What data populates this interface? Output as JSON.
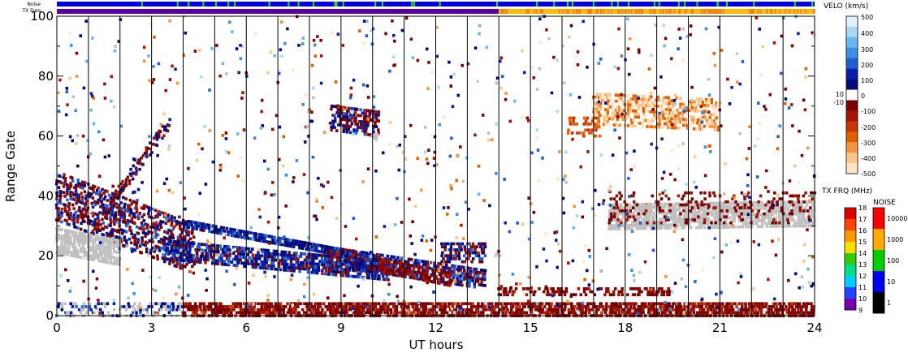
{
  "chart_data": {
    "type": "heatmap",
    "title": "",
    "xlabel": "UT hours",
    "ylabel": "Range Gate",
    "xlim": [
      0,
      24
    ],
    "ylim": [
      0,
      100
    ],
    "x_ticks": [
      0,
      3,
      6,
      9,
      12,
      15,
      18,
      21,
      24
    ],
    "y_ticks": [
      0,
      20,
      40,
      60,
      80,
      100
    ],
    "hour_gridlines": true,
    "strip_labels": {
      "noise": "Noise",
      "txfreq": "TX Freq"
    },
    "noise_strip": {
      "base_color": "#0000dd",
      "accent_color": "#22dd22"
    },
    "txfreq_strip": [
      {
        "start_hour": 0,
        "end_hour": 14,
        "color": "#5a00a8"
      },
      {
        "start_hour": 14,
        "end_hour": 24,
        "color": "#ffbb00"
      }
    ],
    "velocity_legend": {
      "title": "VELO (km/s)",
      "ticks": [
        "500",
        "400",
        "300",
        "200",
        "100",
        "0",
        "10",
        "-10",
        "-100",
        "-200",
        "-300",
        "-400",
        "-500"
      ],
      "colors_top_to_bottom": [
        "#dff0ff",
        "#a6d8f7",
        "#6ab6ee",
        "#3c8ee0",
        "#1f5fcf",
        "#0a1fa8",
        "#000a7a",
        "#ffffff",
        "#7a0000",
        "#a51500",
        "#c83400",
        "#e06000",
        "#f39443",
        "#fcc58a",
        "#ffe4c6"
      ]
    },
    "txfreq_legend": {
      "title": "TX FRQ (MHz)",
      "ticks": [
        "18",
        "17",
        "16",
        "15",
        "14",
        "13",
        "12",
        "11",
        "10",
        "9"
      ],
      "colors_top_to_bottom": [
        "#dd0000",
        "#ff4400",
        "#ff9900",
        "#ffdd00",
        "#33cc00",
        "#00dd88",
        "#00ccff",
        "#2244ff",
        "#7700aa",
        "#000000"
      ]
    },
    "noise_legend": {
      "title": "NOISE",
      "ticks": [
        "10000",
        "1000",
        "100",
        "10",
        "1"
      ],
      "colors_top_to_bottom": [
        "#ff0000",
        "#ffaa00",
        "#00cc00",
        "#0000ee",
        "#000000"
      ]
    },
    "ground_scatter_color": "#c0c0c0",
    "echo_regions": [
      {
        "name": "morning band upper",
        "x": [
          0,
          4.5
        ],
        "y": [
          42,
          22
        ],
        "vel": "mixed"
      },
      {
        "name": "descending negative band",
        "x": [
          4.3,
          14
        ],
        "y": [
          20,
          9
        ],
        "vel": "negative"
      },
      {
        "name": "positive band A",
        "x": [
          3.5,
          10.2
        ],
        "y": [
          28,
          14
        ],
        "vel": "positive"
      },
      {
        "name": "positive band B",
        "x": [
          8.5,
          13.6
        ],
        "y": [
          24,
          10
        ],
        "vel": "positive"
      },
      {
        "name": "near-range band",
        "x": [
          4,
          24
        ],
        "y": [
          0,
          4
        ],
        "vel": "negative"
      },
      {
        "name": "ground scatter morning",
        "x": [
          0,
          2
        ],
        "y": [
          26,
          20
        ],
        "vel": "ground"
      },
      {
        "name": "ground scatter evening",
        "x": [
          17.5,
          24
        ],
        "y": [
          40,
          29
        ],
        "vel": "ground"
      },
      {
        "name": "patch near 9-10h",
        "x": [
          8.7,
          10.2
        ],
        "y": [
          70,
          60
        ],
        "vel": "mixed"
      },
      {
        "name": "evening light negative patch",
        "x": [
          17,
          21
        ],
        "y": [
          75,
          63
        ],
        "vel": "light-negative"
      },
      {
        "name": "patch near 13h",
        "x": [
          12.2,
          13.6
        ],
        "y": [
          24,
          18
        ],
        "vel": "mixed"
      }
    ]
  }
}
